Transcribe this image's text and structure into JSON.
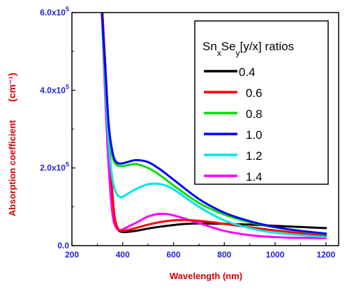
{
  "chart_data": {
    "type": "line",
    "xlabel": "Wavelength (nm)",
    "ylabel": "Absorption coefficient",
    "ylabel_unit": "(cm⁻¹)",
    "xlim": [
      200,
      1250
    ],
    "ylim": [
      0,
      600000
    ],
    "x_ticks": [
      200,
      400,
      600,
      800,
      1000,
      1200
    ],
    "y_ticks": [
      0,
      200000,
      400000,
      600000
    ],
    "y_tick_labels": [
      "0.0",
      "2.0x10⁵",
      "4.0x10⁵",
      "6.0x10⁵"
    ],
    "legend": {
      "title": "SnxSey[y/x] ratios",
      "title_parts": {
        "base1": "Sn",
        "sub1": "x",
        "base2": "Se",
        "sub2": "y",
        "rest": "[y/x] ratios"
      },
      "position": "top-right"
    },
    "series": [
      {
        "name": "0.4",
        "color": "#000000",
        "x": [
          320,
          335,
          350,
          365,
          380,
          400,
          450,
          500,
          550,
          600,
          650,
          700,
          800,
          900,
          1000,
          1100,
          1200
        ],
        "y": [
          600000,
          420000,
          230000,
          90000,
          45000,
          35000,
          38000,
          44000,
          49000,
          53000,
          56000,
          57000,
          56000,
          54000,
          51000,
          48000,
          45000
        ]
      },
      {
        "name": "0.6",
        "color": "#ff0000",
        "x": [
          320,
          335,
          350,
          365,
          380,
          400,
          450,
          500,
          550,
          600,
          650,
          700,
          800,
          900,
          1000,
          1100,
          1200
        ],
        "y": [
          600000,
          420000,
          230000,
          90000,
          45000,
          38000,
          45000,
          54000,
          61000,
          65000,
          66000,
          64000,
          56000,
          47000,
          39000,
          32000,
          26000
        ]
      },
      {
        "name": "0.8",
        "color": "#00dd00",
        "x": [
          318,
          330,
          345,
          360,
          375,
          400,
          450,
          500,
          550,
          600,
          700,
          800,
          900,
          1000,
          1100,
          1200
        ],
        "y": [
          600000,
          460000,
          300000,
          230000,
          208000,
          205000,
          210000,
          200000,
          180000,
          155000,
          110000,
          80000,
          60000,
          47000,
          37000,
          30000
        ]
      },
      {
        "name": "1.0",
        "color": "#0000ff",
        "x": [
          318,
          330,
          345,
          360,
          375,
          400,
          450,
          500,
          550,
          600,
          700,
          800,
          900,
          1000,
          1100,
          1200
        ],
        "y": [
          600000,
          470000,
          310000,
          240000,
          215000,
          212000,
          220000,
          215000,
          195000,
          170000,
          120000,
          85000,
          63000,
          48000,
          38000,
          31000
        ]
      },
      {
        "name": "1.2",
        "color": "#00e5e5",
        "x": [
          318,
          330,
          345,
          360,
          375,
          390,
          400,
          450,
          500,
          550,
          600,
          700,
          800,
          900,
          1000,
          1100,
          1200
        ],
        "y": [
          600000,
          430000,
          260000,
          170000,
          135000,
          125000,
          126000,
          145000,
          158000,
          158000,
          145000,
          100000,
          65000,
          45000,
          33000,
          27000,
          22000
        ]
      },
      {
        "name": "1.4",
        "color": "#ff00ff",
        "x": [
          318,
          330,
          345,
          360,
          375,
          390,
          400,
          450,
          500,
          550,
          600,
          700,
          800,
          900,
          1000,
          1100,
          1200
        ],
        "y": [
          600000,
          400000,
          200000,
          80000,
          45000,
          40000,
          42000,
          58000,
          75000,
          82000,
          78000,
          58000,
          38000,
          27000,
          22000,
          20000,
          19000
        ]
      }
    ]
  }
}
